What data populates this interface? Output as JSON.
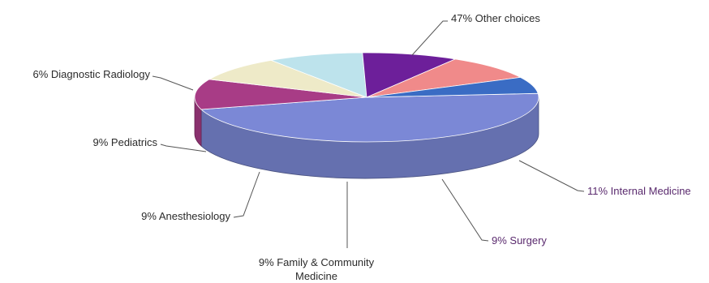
{
  "chart_data": {
    "type": "pie",
    "style": "3d-exploded-none",
    "title": "",
    "slices": [
      {
        "label": "Other choices",
        "pct_text": "47%",
        "value": 47,
        "color": "#7b88d6"
      },
      {
        "label": "Internal Medicine",
        "pct_text": "11%",
        "value": 11,
        "color": "#a83c86"
      },
      {
        "label": "Surgery",
        "pct_text": "9%",
        "value": 9,
        "color": "#eeeac8"
      },
      {
        "label": "Family & Community Medicine",
        "label_lines": [
          "Family & Community",
          "Medicine"
        ],
        "pct_text": "9%",
        "value": 9,
        "color": "#bde3ec"
      },
      {
        "label": "Anesthesiology",
        "pct_text": "9%",
        "value": 9,
        "color": "#6d1f9a"
      },
      {
        "label": "Pediatrics",
        "pct_text": "9%",
        "value": 9,
        "color": "#f08a8a"
      },
      {
        "label": "Diagnostic Radiology",
        "pct_text": "6%",
        "value": 6,
        "color": "#3a6cc4"
      }
    ],
    "legend": "none",
    "label_style": "leader-lines"
  }
}
